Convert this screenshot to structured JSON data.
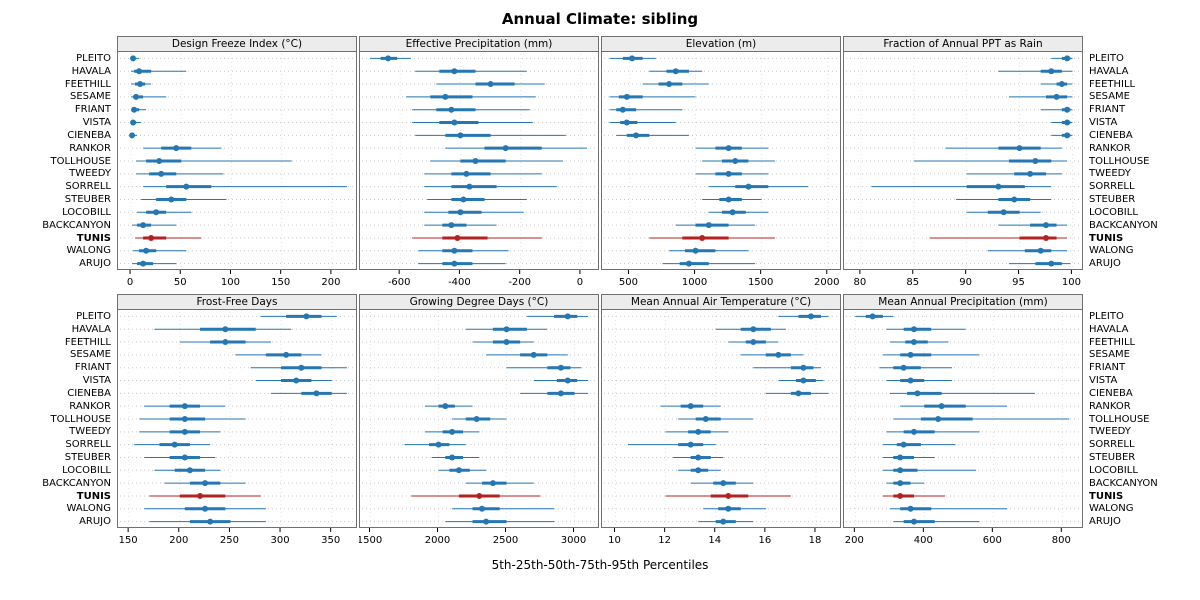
{
  "chart_data": {
    "type": "scatter",
    "subtype": "percentile-dotplot-trellis",
    "title": "Annual Climate: sibling",
    "xlabel": "5th-25th-50th-75th-95th Percentiles",
    "percentiles": [
      5,
      25,
      50,
      75,
      95
    ],
    "legend_position": "none",
    "grid": "dotted",
    "highlight_station": "TUNIS",
    "colors": {
      "series": "#2477b3",
      "highlight": "#b22222",
      "strip_bg": "#ececec",
      "grid": "#c8c8c8"
    },
    "stations": [
      "PLEITO",
      "HAVALA",
      "FEETHILL",
      "SESAME",
      "FRIANT",
      "VISTA",
      "CIENEBA",
      "RANKOR",
      "TOLLHOUSE",
      "TWEEDY",
      "SORRELL",
      "STEUBER",
      "LOCOBILL",
      "BACKCANYON",
      "TUNIS",
      "WALONG",
      "ARUJO"
    ],
    "panels": [
      {
        "title": "Design Freeze Index (°C)",
        "ticks": [
          0,
          50,
          100,
          150,
          200
        ],
        "xlim": [
          -12,
          225
        ],
        "values": [
          [
            0,
            1,
            2,
            4,
            8
          ],
          [
            0,
            3,
            8,
            20,
            55
          ],
          [
            0,
            4,
            9,
            14,
            20
          ],
          [
            0,
            2,
            5,
            12,
            35
          ],
          [
            0,
            1,
            3,
            8,
            15
          ],
          [
            0,
            1,
            2,
            5,
            10
          ],
          [
            0,
            0,
            1,
            3,
            6
          ],
          [
            12,
            30,
            45,
            60,
            90
          ],
          [
            5,
            15,
            28,
            50,
            160
          ],
          [
            5,
            18,
            30,
            45,
            92
          ],
          [
            12,
            35,
            55,
            80,
            215
          ],
          [
            10,
            25,
            40,
            55,
            95
          ],
          [
            6,
            15,
            25,
            35,
            60
          ],
          [
            1,
            6,
            12,
            20,
            45
          ],
          [
            4,
            12,
            20,
            35,
            70
          ],
          [
            2,
            8,
            15,
            25,
            55
          ],
          [
            1,
            6,
            12,
            22,
            45
          ]
        ]
      },
      {
        "title": "Effective Precipitation (mm)",
        "ticks": [
          -600,
          -400,
          -200,
          0
        ],
        "xlim": [
          -730,
          60
        ],
        "values": [
          [
            -700,
            -665,
            -640,
            -610,
            -565
          ],
          [
            -550,
            -470,
            -420,
            -350,
            -180
          ],
          [
            -480,
            -350,
            -300,
            -220,
            -120
          ],
          [
            -580,
            -500,
            -450,
            -360,
            -150
          ],
          [
            -560,
            -480,
            -430,
            -350,
            -170
          ],
          [
            -560,
            -470,
            -420,
            -340,
            -160
          ],
          [
            -550,
            -450,
            -400,
            -300,
            -50
          ],
          [
            -450,
            -320,
            -250,
            -130,
            20
          ],
          [
            -500,
            -400,
            -350,
            -250,
            -60
          ],
          [
            -520,
            -430,
            -380,
            -300,
            -130
          ],
          [
            -520,
            -430,
            -370,
            -280,
            -80
          ],
          [
            -510,
            -430,
            -390,
            -320,
            -180
          ],
          [
            -520,
            -440,
            -400,
            -330,
            -190
          ],
          [
            -520,
            -460,
            -430,
            -380,
            -280
          ],
          [
            -560,
            -460,
            -410,
            -310,
            -130
          ],
          [
            -540,
            -460,
            -420,
            -360,
            -240
          ],
          [
            -540,
            -460,
            -420,
            -360,
            -250
          ]
        ]
      },
      {
        "title": "Elevation (m)",
        "ticks": [
          500,
          1000,
          1500,
          2000
        ],
        "xlim": [
          300,
          2100
        ],
        "values": [
          [
            350,
            450,
            520,
            600,
            700
          ],
          [
            650,
            780,
            850,
            950,
            1050
          ],
          [
            600,
            720,
            800,
            900,
            1100
          ],
          [
            350,
            420,
            480,
            600,
            1000
          ],
          [
            350,
            400,
            450,
            550,
            900
          ],
          [
            350,
            430,
            480,
            560,
            850
          ],
          [
            400,
            480,
            550,
            650,
            950
          ],
          [
            1000,
            1150,
            1250,
            1350,
            1550
          ],
          [
            1050,
            1200,
            1300,
            1400,
            1600
          ],
          [
            1000,
            1150,
            1250,
            1350,
            1550
          ],
          [
            1100,
            1300,
            1400,
            1550,
            1850
          ],
          [
            1050,
            1180,
            1250,
            1350,
            1500
          ],
          [
            1100,
            1200,
            1280,
            1380,
            1550
          ],
          [
            850,
            1000,
            1100,
            1250,
            1450
          ],
          [
            650,
            900,
            1050,
            1250,
            1600
          ],
          [
            800,
            920,
            1000,
            1150,
            1400
          ],
          [
            750,
            880,
            950,
            1100,
            1450
          ]
        ]
      },
      {
        "title": "Fraction of Annual PPT as Rain",
        "ticks": [
          80,
          85,
          90,
          95,
          100
        ],
        "xlim": [
          78.5,
          101
        ],
        "values": [
          [
            98,
            99,
            99.5,
            99.8,
            100
          ],
          [
            93,
            97,
            98,
            99,
            100
          ],
          [
            97,
            98.5,
            99,
            99.5,
            100
          ],
          [
            94,
            97.5,
            98.5,
            99.5,
            100
          ],
          [
            97,
            99,
            99.5,
            99.8,
            100
          ],
          [
            98,
            99,
            99.5,
            99.8,
            100
          ],
          [
            98,
            99,
            99.5,
            99.8,
            100
          ],
          [
            88,
            93,
            95,
            97,
            99
          ],
          [
            85,
            94,
            96.5,
            98,
            99.5
          ],
          [
            90,
            94.5,
            96,
            97.5,
            99
          ],
          [
            81,
            90,
            93,
            95.5,
            98
          ],
          [
            89,
            93,
            94.5,
            96,
            98
          ],
          [
            90,
            92,
            93.5,
            95,
            97
          ],
          [
            93,
            96,
            97.5,
            98.5,
            99.5
          ],
          [
            86.5,
            95,
            97.5,
            98.5,
            99.5
          ],
          [
            92,
            95.5,
            97,
            98,
            99.5
          ],
          [
            94,
            96.5,
            98,
            99,
            99.8
          ]
        ]
      },
      {
        "title": "Frost-Free Days",
        "ticks": [
          150,
          200,
          250,
          300,
          350
        ],
        "xlim": [
          140,
          375
        ],
        "values": [
          [
            280,
            305,
            325,
            340,
            355
          ],
          [
            175,
            220,
            245,
            275,
            310
          ],
          [
            200,
            230,
            245,
            265,
            290
          ],
          [
            255,
            285,
            305,
            320,
            340
          ],
          [
            270,
            300,
            320,
            340,
            365
          ],
          [
            275,
            300,
            315,
            330,
            350
          ],
          [
            290,
            320,
            335,
            350,
            365
          ],
          [
            165,
            190,
            205,
            220,
            245
          ],
          [
            160,
            190,
            205,
            225,
            265
          ],
          [
            160,
            190,
            205,
            220,
            240
          ],
          [
            155,
            180,
            195,
            210,
            230
          ],
          [
            165,
            190,
            205,
            220,
            235
          ],
          [
            175,
            195,
            210,
            225,
            240
          ],
          [
            185,
            210,
            225,
            240,
            265
          ],
          [
            170,
            200,
            220,
            245,
            280
          ],
          [
            165,
            205,
            225,
            245,
            285
          ],
          [
            170,
            210,
            230,
            250,
            285
          ]
        ]
      },
      {
        "title": "Growing Degree Days (°C)",
        "ticks": [
          1500,
          2000,
          2500,
          3000
        ],
        "xlim": [
          1430,
          3180
        ],
        "values": [
          [
            2650,
            2850,
            2950,
            3020,
            3100
          ],
          [
            2200,
            2400,
            2500,
            2650,
            2800
          ],
          [
            2250,
            2400,
            2500,
            2600,
            2700
          ],
          [
            2350,
            2600,
            2700,
            2800,
            2950
          ],
          [
            2500,
            2800,
            2900,
            2970,
            3050
          ],
          [
            2700,
            2870,
            2950,
            3020,
            3100
          ],
          [
            2600,
            2800,
            2900,
            3000,
            3100
          ],
          [
            1900,
            2000,
            2050,
            2120,
            2250
          ],
          [
            2100,
            2200,
            2280,
            2380,
            2500
          ],
          [
            1900,
            2030,
            2100,
            2180,
            2300
          ],
          [
            1750,
            1930,
            2000,
            2080,
            2200
          ],
          [
            1950,
            2050,
            2100,
            2180,
            2300
          ],
          [
            2000,
            2080,
            2150,
            2230,
            2350
          ],
          [
            2200,
            2320,
            2400,
            2500,
            2700
          ],
          [
            1800,
            2150,
            2300,
            2450,
            2750
          ],
          [
            2100,
            2250,
            2320,
            2450,
            2850
          ],
          [
            2050,
            2250,
            2350,
            2500,
            2850
          ]
        ]
      },
      {
        "title": "Mean Annual Air Temperature (°C)",
        "ticks": [
          10,
          12,
          14,
          16,
          18
        ],
        "xlim": [
          9.5,
          19
        ],
        "values": [
          [
            16.5,
            17.3,
            17.8,
            18.2,
            18.5
          ],
          [
            14,
            15,
            15.5,
            16.2,
            16.8
          ],
          [
            14.5,
            15.2,
            15.5,
            16,
            16.5
          ],
          [
            15,
            16,
            16.5,
            17,
            17.5
          ],
          [
            15.5,
            17,
            17.5,
            17.9,
            18.2
          ],
          [
            16.5,
            17.2,
            17.5,
            18,
            18.3
          ],
          [
            16,
            17,
            17.3,
            17.8,
            18.5
          ],
          [
            11.8,
            12.6,
            13,
            13.5,
            14.2
          ],
          [
            12.5,
            13.2,
            13.6,
            14.2,
            15.5
          ],
          [
            12,
            12.9,
            13.3,
            13.8,
            14.5
          ],
          [
            10.5,
            12.5,
            13,
            13.5,
            14
          ],
          [
            12.3,
            13,
            13.3,
            13.8,
            14.3
          ],
          [
            12.5,
            13,
            13.3,
            13.7,
            14.2
          ],
          [
            13,
            13.9,
            14.3,
            14.8,
            15.5
          ],
          [
            12,
            13.8,
            14.5,
            15.3,
            17
          ],
          [
            13.5,
            14.1,
            14.5,
            15,
            16
          ],
          [
            13.3,
            14,
            14.3,
            14.8,
            15.5
          ]
        ]
      },
      {
        "title": "Mean Annual Precipitation (mm)",
        "ticks": [
          200,
          400,
          600,
          800
        ],
        "xlim": [
          170,
          860
        ],
        "values": [
          [
            200,
            230,
            250,
            280,
            310
          ],
          [
            290,
            340,
            370,
            420,
            520
          ],
          [
            300,
            345,
            370,
            410,
            470
          ],
          [
            280,
            330,
            360,
            420,
            560
          ],
          [
            270,
            310,
            340,
            390,
            480
          ],
          [
            290,
            330,
            360,
            400,
            480
          ],
          [
            300,
            350,
            380,
            450,
            720
          ],
          [
            330,
            400,
            450,
            520,
            640
          ],
          [
            310,
            390,
            440,
            540,
            820
          ],
          [
            290,
            340,
            370,
            430,
            560
          ],
          [
            280,
            320,
            340,
            390,
            490
          ],
          [
            280,
            310,
            330,
            370,
            430
          ],
          [
            280,
            310,
            330,
            380,
            550
          ],
          [
            290,
            310,
            330,
            360,
            400
          ],
          [
            280,
            310,
            330,
            370,
            460
          ],
          [
            300,
            330,
            360,
            420,
            640
          ],
          [
            310,
            340,
            370,
            430,
            560
          ]
        ]
      }
    ]
  }
}
